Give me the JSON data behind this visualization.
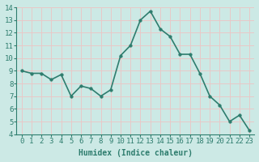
{
  "x": [
    0,
    1,
    2,
    3,
    4,
    5,
    6,
    7,
    8,
    9,
    10,
    11,
    12,
    13,
    14,
    15,
    16,
    17,
    18,
    19,
    20,
    21,
    22,
    23
  ],
  "y": [
    9.0,
    8.8,
    8.8,
    8.3,
    8.7,
    7.0,
    7.8,
    7.6,
    7.0,
    7.5,
    10.2,
    11.0,
    13.0,
    13.7,
    12.3,
    11.7,
    10.3,
    10.3,
    8.8,
    7.0,
    6.3,
    5.0,
    5.5,
    4.3
  ],
  "line_color": "#2e7d6e",
  "marker_color": "#2e7d6e",
  "bg_color": "#cce9e5",
  "grid_color": "#e8c8c8",
  "xlabel": "Humidex (Indice chaleur)",
  "xlim": [
    -0.5,
    23.5
  ],
  "ylim": [
    4,
    14
  ],
  "yticks": [
    4,
    5,
    6,
    7,
    8,
    9,
    10,
    11,
    12,
    13,
    14
  ],
  "xticks": [
    0,
    1,
    2,
    3,
    4,
    5,
    6,
    7,
    8,
    9,
    10,
    11,
    12,
    13,
    14,
    15,
    16,
    17,
    18,
    19,
    20,
    21,
    22,
    23
  ],
  "xlabel_fontsize": 7,
  "tick_fontsize": 6.5,
  "marker_size": 2.5,
  "line_width": 1.2
}
